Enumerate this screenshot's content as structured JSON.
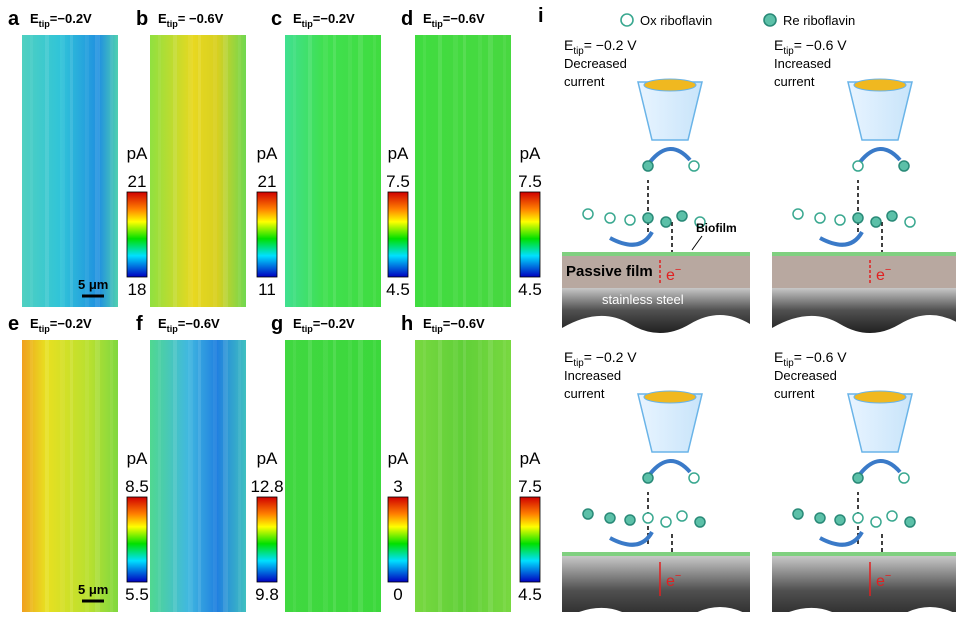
{
  "panels": [
    {
      "letter": "a",
      "tip": {
        "base": "E",
        "sub": "tip",
        "rest": "=−0.2V"
      },
      "unit": "pA",
      "max": "21",
      "min": "18",
      "scale_bar": "5 μm"
    },
    {
      "letter": "b",
      "tip": {
        "base": "E",
        "sub": "tip",
        "rest": "= −0.6V"
      },
      "unit": "pA",
      "max": "21",
      "min": "11"
    },
    {
      "letter": "c",
      "tip": {
        "base": "E",
        "sub": "tip",
        "rest": "=−0.2V"
      },
      "unit": "pA",
      "max": "7.5",
      "min": "4.5"
    },
    {
      "letter": "d",
      "tip": {
        "base": "E",
        "sub": "tip",
        "rest": "=−0.6V"
      },
      "unit": "pA",
      "max": "7.5",
      "min": "4.5"
    },
    {
      "letter": "e",
      "tip": {
        "base": "E",
        "sub": "tip",
        "rest": "=−0.2V"
      },
      "unit": "pA",
      "max": "8.5",
      "min": "5.5",
      "scale_bar": "5 μm"
    },
    {
      "letter": "f",
      "tip": {
        "base": "E",
        "sub": "tip",
        "rest": "=−0.6V"
      },
      "unit": "pA",
      "max": "12.8",
      "min": "9.8"
    },
    {
      "letter": "g",
      "tip": {
        "base": "E",
        "sub": "tip",
        "rest": "=−0.2V"
      },
      "unit": "pA",
      "max": "3",
      "min": "0"
    },
    {
      "letter": "h",
      "tip": {
        "base": "E",
        "sub": "tip",
        "rest": "=−0.6V"
      },
      "unit": "pA",
      "max": "7.5",
      "min": "4.5"
    }
  ],
  "schematic": {
    "letter": "i",
    "legend": {
      "ox": "Ox riboflavin",
      "re": "Re riboflavin"
    },
    "scenarios": [
      {
        "tip": {
          "base": "E",
          "sub": "tip",
          "rest": "= −0.2 V"
        },
        "current": [
          "Decreased",
          "current"
        ]
      },
      {
        "tip": {
          "base": "E",
          "sub": "tip",
          "rest": "= −0.6 V"
        },
        "current": [
          "Increased",
          "current"
        ]
      },
      {
        "tip": {
          "base": "E",
          "sub": "tip",
          "rest": "= −0.2 V"
        },
        "current": [
          "Increased",
          "current"
        ]
      },
      {
        "tip": {
          "base": "E",
          "sub": "tip",
          "rest": "= −0.6 V"
        },
        "current": [
          "Decreased",
          "current"
        ]
      }
    ],
    "labels": {
      "biofilm": "Biofilm",
      "passive_film": "Passive film",
      "steel": "stainless steel",
      "electron": {
        "base": "e",
        "sup": "−"
      }
    }
  }
}
